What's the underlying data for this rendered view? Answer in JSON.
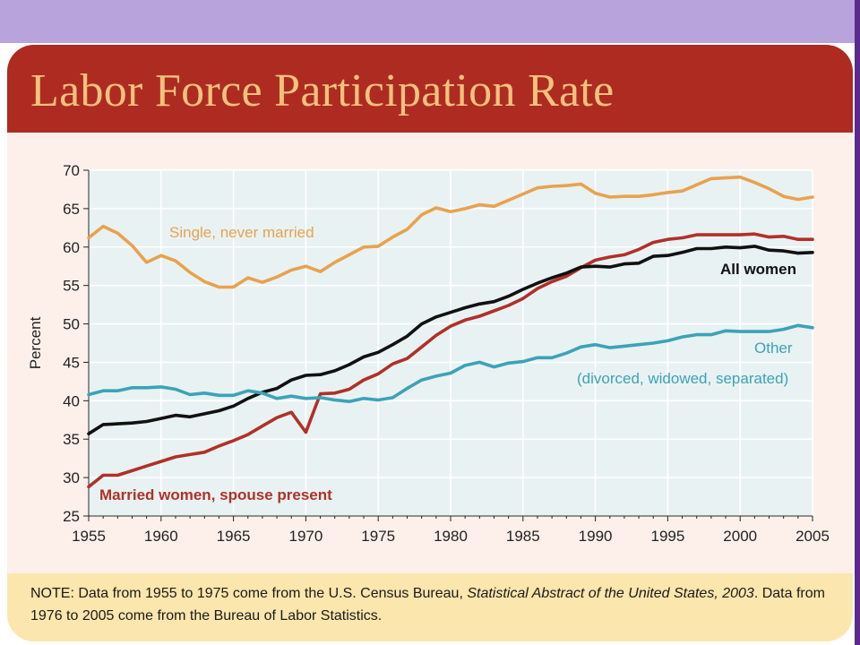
{
  "title": "Labor Force Participation Rate",
  "note": {
    "prefix": "NOTE:  Data from 1955 to 1975 come from the U.S. Census Bureau, ",
    "source_title": "Statistical Abstract of the United States, 2003",
    "suffix": ".  Data from 1976 to 2005 come from the Bureau of Labor Statistics."
  },
  "colors": {
    "header": "#ae2b22",
    "title": "#f1c27d",
    "plot_background": "#e9f2f2",
    "grid": "#ffffff",
    "note_background": "#fbe6ad",
    "top_band": "#b8a3dc"
  },
  "chart_data": {
    "type": "line",
    "title": "Labor Force Participation Rate",
    "xlabel": "",
    "ylabel": "Percent",
    "xlim": [
      1955,
      2005
    ],
    "ylim": [
      25,
      70
    ],
    "xticks": [
      1955,
      1960,
      1965,
      1970,
      1975,
      1980,
      1985,
      1990,
      1995,
      2000,
      2005
    ],
    "yticks": [
      25,
      30,
      35,
      40,
      45,
      50,
      55,
      60,
      65,
      70
    ],
    "grid": true,
    "x": [
      1955,
      1956,
      1957,
      1958,
      1959,
      1960,
      1961,
      1962,
      1963,
      1964,
      1965,
      1966,
      1967,
      1968,
      1969,
      1970,
      1971,
      1972,
      1973,
      1974,
      1975,
      1976,
      1977,
      1978,
      1979,
      1980,
      1981,
      1982,
      1983,
      1984,
      1985,
      1986,
      1987,
      1988,
      1989,
      1990,
      1991,
      1992,
      1993,
      1994,
      1995,
      1996,
      1997,
      1998,
      1999,
      2000,
      2001,
      2002,
      2003,
      2004,
      2005
    ],
    "series": [
      {
        "name": "Single, never married",
        "color": "#e8a24e",
        "values": [
          61.2,
          62.7,
          61.8,
          60.2,
          58.0,
          58.9,
          58.2,
          56.7,
          55.5,
          54.8,
          54.8,
          56.0,
          55.4,
          56.1,
          57.0,
          57.5,
          56.8,
          58.0,
          59.0,
          60.0,
          60.1,
          61.3,
          62.3,
          64.2,
          65.1,
          64.6,
          65.0,
          65.5,
          65.3,
          66.1,
          66.9,
          67.7,
          67.9,
          68.0,
          68.2,
          67.0,
          66.5,
          66.6,
          66.6,
          66.8,
          67.1,
          67.3,
          68.1,
          68.9,
          69.0,
          69.1,
          68.4,
          67.6,
          66.6,
          66.2,
          66.5
        ]
      },
      {
        "name": "Married women, spouse present",
        "color": "#b1302a",
        "values": [
          28.8,
          30.3,
          30.3,
          30.9,
          31.5,
          32.1,
          32.7,
          33.0,
          33.3,
          34.1,
          34.8,
          35.6,
          36.7,
          37.8,
          38.5,
          35.9,
          40.9,
          41.0,
          41.5,
          42.7,
          43.5,
          44.8,
          45.5,
          47.0,
          48.5,
          49.7,
          50.5,
          51.0,
          51.7,
          52.4,
          53.3,
          54.6,
          55.5,
          56.2,
          57.3,
          58.3,
          58.7,
          59.0,
          59.7,
          60.6,
          61.0,
          61.2,
          61.6,
          61.6,
          61.6,
          61.6,
          61.7,
          61.3,
          61.4,
          61.0,
          61.0
        ]
      },
      {
        "name": "All women",
        "color": "#111111",
        "values": [
          35.7,
          36.9,
          37.0,
          37.1,
          37.3,
          37.7,
          38.1,
          37.9,
          38.3,
          38.7,
          39.3,
          40.3,
          41.1,
          41.6,
          42.7,
          43.3,
          43.4,
          43.9,
          44.7,
          45.7,
          46.3,
          47.3,
          48.4,
          50.0,
          50.9,
          51.5,
          52.1,
          52.6,
          52.9,
          53.6,
          54.5,
          55.3,
          56.0,
          56.6,
          57.4,
          57.5,
          57.4,
          57.8,
          57.9,
          58.8,
          58.9,
          59.3,
          59.8,
          59.8,
          60.0,
          59.9,
          60.1,
          59.6,
          59.5,
          59.2,
          59.3
        ]
      },
      {
        "name": "Other",
        "color": "#3ba3b8",
        "values": [
          40.8,
          41.3,
          41.3,
          41.7,
          41.7,
          41.8,
          41.5,
          40.8,
          41.0,
          40.7,
          40.7,
          41.3,
          41.0,
          40.3,
          40.6,
          40.3,
          40.4,
          40.1,
          39.9,
          40.3,
          40.1,
          40.4,
          41.6,
          42.7,
          43.2,
          43.6,
          44.6,
          45.0,
          44.4,
          44.9,
          45.1,
          45.6,
          45.6,
          46.2,
          47.0,
          47.3,
          46.9,
          47.1,
          47.3,
          47.5,
          47.8,
          48.3,
          48.6,
          48.6,
          49.1,
          49.0,
          49.0,
          49.0,
          49.3,
          49.8,
          49.5
        ]
      }
    ],
    "annotations": [
      {
        "series": "Single, never married",
        "text": "Single, never married",
        "color": "#e8a24e"
      },
      {
        "series": "All women",
        "text": "All women",
        "color": "#111111"
      },
      {
        "series": "Other",
        "text": "Other",
        "color": "#3ba3b8"
      },
      {
        "series": "Other",
        "text": "(divorced, widowed, separated)",
        "color": "#3ba3b8"
      },
      {
        "series": "Married women, spouse present",
        "text": "Married women, spouse present",
        "color": "#b1302a"
      }
    ]
  }
}
